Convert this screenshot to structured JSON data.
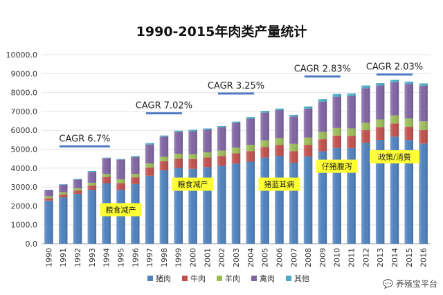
{
  "chart_data": {
    "type": "bar",
    "stacked": true,
    "title": "1990-2015年肉类产量统计",
    "ylim": [
      0,
      10000
    ],
    "yticks": [
      "0.0",
      "1000.0",
      "2000.0",
      "3000.0",
      "4000.0",
      "5000.0",
      "6000.0",
      "7000.0",
      "8000.0",
      "9000.0",
      "10000.0"
    ],
    "categories": [
      "1990",
      "1991",
      "1992",
      "1993",
      "1994",
      "1995",
      "1996",
      "1997",
      "1998",
      "1999",
      "2000",
      "2001",
      "2002",
      "2003",
      "2004",
      "2005",
      "2006",
      "2007",
      "2008",
      "2009",
      "2010",
      "2011",
      "2012",
      "2013",
      "2014",
      "2015",
      "2016"
    ],
    "series": [
      {
        "name": "猪肉",
        "color": "#4f81bd",
        "values": [
          2281,
          2452,
          2635,
          2854,
          3205,
          2854,
          3158,
          3596,
          3884,
          4006,
          3966,
          4052,
          4123,
          4239,
          4341,
          4555,
          4650,
          4288,
          4621,
          4891,
          5071,
          5060,
          5343,
          5493,
          5671,
          5487,
          5299
        ]
      },
      {
        "name": "牛肉",
        "color": "#c0504d",
        "values": [
          126,
          154,
          180,
          234,
          327,
          356,
          355,
          441,
          480,
          505,
          513,
          509,
          522,
          543,
          561,
          568,
          577,
          613,
          613,
          636,
          653,
          648,
          662,
          673,
          689,
          700,
          717
        ]
      },
      {
        "name": "羊肉",
        "color": "#9bbb59",
        "values": [
          107,
          118,
          125,
          138,
          161,
          201,
          181,
          213,
          235,
          251,
          264,
          271,
          283,
          308,
          332,
          350,
          364,
          383,
          380,
          389,
          399,
          393,
          401,
          408,
          428,
          441,
          459
        ]
      },
      {
        "name": "禽肉",
        "color": "#8064a2",
        "values": [
          323,
          395,
          454,
          573,
          836,
          1042,
          883,
          1000,
          1066,
          1145,
          1208,
          1195,
          1240,
          1312,
          1376,
          1464,
          1476,
          1447,
          1533,
          1596,
          1656,
          1709,
          1823,
          1798,
          1751,
          1826,
          1888
        ]
      },
      {
        "name": "其他",
        "color": "#4bacc6",
        "values": [
          20,
          30,
          38,
          53,
          24,
          25,
          62,
          76,
          60,
          72,
          79,
          73,
          60,
          59,
          90,
          90,
          83,
          85,
          115,
          138,
          146,
          137,
          140,
          124,
          136,
          122,
          117
        ]
      }
    ],
    "annotations": {
      "cagr": [
        {
          "label": "CAGR 6.7%",
          "from": "1991",
          "to": "1994",
          "value": 5150
        },
        {
          "label": "CAGR 7.02%",
          "from": "1997",
          "to": "1999",
          "value": 6900
        },
        {
          "label": "CAGR 3.25%",
          "from": "2002",
          "to": "2004",
          "value": 7950
        },
        {
          "label": "CAGR 2.83%",
          "from": "2008",
          "to": "2010",
          "value": 8850
        },
        {
          "label": "CAGR 2.03%",
          "from": "2013",
          "to": "2015",
          "value": 8950
        }
      ],
      "notes": [
        {
          "label": "粮食减产",
          "category": "1995",
          "value": 1800
        },
        {
          "label": "粮食减产",
          "category": "2000",
          "value": 3150
        },
        {
          "label": "猪蓝耳病",
          "category": "2006",
          "value": 3150
        },
        {
          "label": "仔猪腹泻",
          "category": "2010",
          "value": 4100
        },
        {
          "label": "政策/消费",
          "category": "2014",
          "value": 4600
        }
      ]
    }
  },
  "watermark": "养殖宝平台"
}
